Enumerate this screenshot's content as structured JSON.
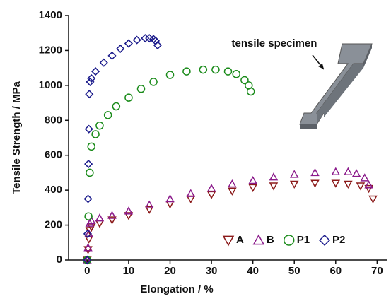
{
  "chart_data": {
    "type": "scatter",
    "xlabel": "Elongation / %",
    "ylabel": "Tensile Strength / MPa",
    "annotation": "tensile specimen",
    "xlim": [
      -4.5,
      72.5
    ],
    "ylim": [
      0,
      1400
    ],
    "xticks": [
      0,
      10,
      20,
      30,
      40,
      50,
      60,
      70
    ],
    "yticks": [
      0,
      200,
      400,
      600,
      800,
      1000,
      1200,
      1400
    ],
    "legend": "lower right",
    "series": [
      {
        "name": "A",
        "color": "#8b1a1a",
        "marker": "triangle-down",
        "x": [
          0,
          0.2,
          0.4,
          0.6,
          1,
          3,
          6,
          10,
          15,
          20,
          25,
          30,
          35,
          40,
          45,
          50,
          55,
          60,
          63,
          66,
          68,
          69
        ],
        "values": [
          0,
          60,
          120,
          170,
          190,
          210,
          230,
          255,
          290,
          320,
          350,
          375,
          395,
          415,
          425,
          435,
          440,
          440,
          435,
          425,
          410,
          350
        ]
      },
      {
        "name": "B",
        "color": "#8b1a8b",
        "marker": "triangle-up",
        "x": [
          0,
          0.2,
          0.4,
          0.6,
          1,
          3,
          6,
          10,
          15,
          20,
          25,
          30,
          35,
          40,
          45,
          50,
          55,
          60,
          63,
          65,
          67,
          68
        ],
        "values": [
          0,
          70,
          150,
          210,
          225,
          240,
          255,
          280,
          315,
          350,
          380,
          410,
          435,
          455,
          475,
          490,
          500,
          505,
          505,
          495,
          470,
          430
        ]
      },
      {
        "name": "P1",
        "color": "#1a8b1a",
        "marker": "circle",
        "x": [
          0,
          0.3,
          0.6,
          1,
          2,
          3,
          5,
          7,
          10,
          13,
          16,
          20,
          24,
          28,
          31,
          34,
          36,
          38,
          39,
          39.5
        ],
        "values": [
          0,
          250,
          500,
          650,
          720,
          770,
          830,
          880,
          930,
          980,
          1020,
          1060,
          1080,
          1090,
          1090,
          1080,
          1065,
          1030,
          1000,
          965
        ]
      },
      {
        "name": "P2",
        "color": "#1a1a8b",
        "marker": "diamond",
        "x": [
          0,
          0.1,
          0.2,
          0.3,
          0.4,
          0.5,
          0.7,
          1,
          2,
          4,
          6,
          8,
          10,
          12,
          14,
          15,
          16,
          16.5,
          17
        ],
        "values": [
          0,
          150,
          350,
          550,
          750,
          950,
          1020,
          1040,
          1080,
          1130,
          1170,
          1210,
          1240,
          1260,
          1270,
          1270,
          1265,
          1255,
          1230
        ]
      }
    ]
  }
}
